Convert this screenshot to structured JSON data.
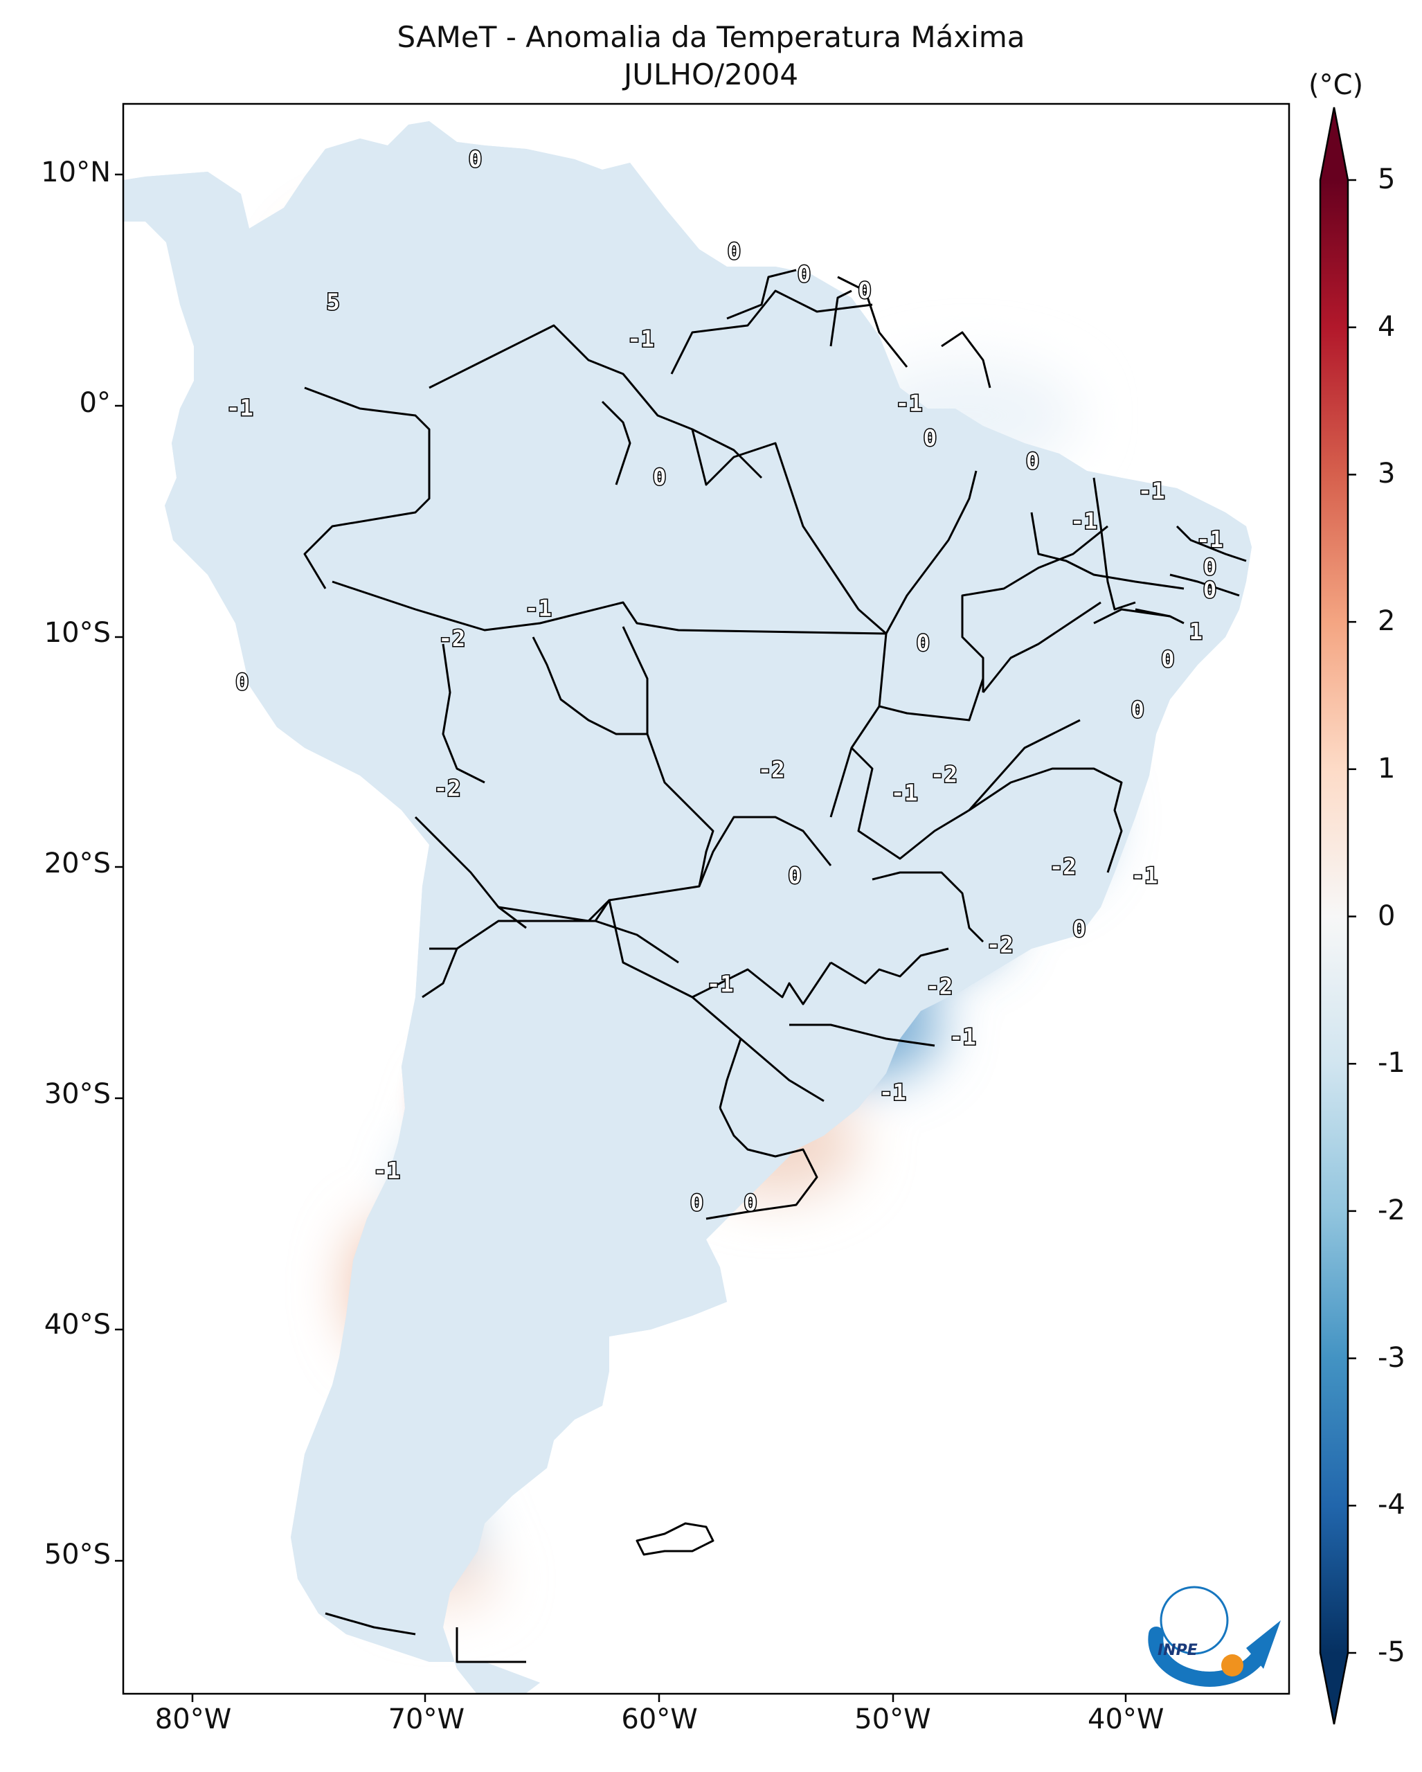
{
  "title": "SAMeT - Anomalia da Temperatura Máxima",
  "subtitle": "JULHO/2004",
  "colorbar": {
    "unit": "(°C)",
    "ticks": [
      "5",
      "4",
      "3",
      "2",
      "1",
      "0",
      "-1",
      "-2",
      "-3",
      "-4",
      "-5"
    ],
    "range": [
      -5,
      5
    ],
    "colormap": "RdBu_r",
    "extend": "both"
  },
  "axes": {
    "lat_ticks": [
      "10°N",
      "0°",
      "10°S",
      "20°S",
      "30°S",
      "40°S",
      "50°S"
    ],
    "lon_ticks": [
      "80°W",
      "70°W",
      "60°W",
      "50°W",
      "40°W"
    ],
    "lon_range": [
      -83,
      -33
    ],
    "lat_range": [
      -56,
      13
    ]
  },
  "contour_labels": [
    {
      "text": "0",
      "lon": -67.9,
      "lat": 10.6
    },
    {
      "text": "0",
      "lon": -56.8,
      "lat": 6.6
    },
    {
      "text": "0",
      "lon": -53.8,
      "lat": 5.6
    },
    {
      "text": "0",
      "lon": -51.2,
      "lat": 4.9
    },
    {
      "text": "5",
      "lon": -74.0,
      "lat": 4.4
    },
    {
      "text": "-1",
      "lon": -60.8,
      "lat": 2.8
    },
    {
      "text": "-1",
      "lon": -78.0,
      "lat": -0.2
    },
    {
      "text": "-1",
      "lon": -49.3,
      "lat": 0.0
    },
    {
      "text": "0",
      "lon": -48.4,
      "lat": -1.5
    },
    {
      "text": "0",
      "lon": -60.0,
      "lat": -3.2
    },
    {
      "text": "0",
      "lon": -44.0,
      "lat": -2.5
    },
    {
      "text": "-1",
      "lon": -38.9,
      "lat": -3.8
    },
    {
      "text": "-1",
      "lon": -41.8,
      "lat": -5.1
    },
    {
      "text": "-1",
      "lon": -36.4,
      "lat": -5.9
    },
    {
      "text": "0",
      "lon": -36.4,
      "lat": -7.1
    },
    {
      "text": "0",
      "lon": -36.4,
      "lat": -8.1
    },
    {
      "text": "-1",
      "lon": -65.2,
      "lat": -8.9
    },
    {
      "text": "-2",
      "lon": -68.9,
      "lat": -10.2
    },
    {
      "text": "1",
      "lon": -37.0,
      "lat": -9.9
    },
    {
      "text": "0",
      "lon": -48.7,
      "lat": -10.4
    },
    {
      "text": "0",
      "lon": -38.2,
      "lat": -11.1
    },
    {
      "text": "0",
      "lon": -77.9,
      "lat": -12.1
    },
    {
      "text": "0",
      "lon": -39.5,
      "lat": -13.3
    },
    {
      "text": "-2",
      "lon": -55.2,
      "lat": -15.9
    },
    {
      "text": "-2",
      "lon": -47.8,
      "lat": -16.1
    },
    {
      "text": "-1",
      "lon": -49.5,
      "lat": -16.9
    },
    {
      "text": "-2",
      "lon": -69.1,
      "lat": -16.7
    },
    {
      "text": "-2",
      "lon": -42.7,
      "lat": -20.1
    },
    {
      "text": "0",
      "lon": -54.2,
      "lat": -20.5
    },
    {
      "text": "-1",
      "lon": -39.2,
      "lat": -20.5
    },
    {
      "text": "0",
      "lon": -42.0,
      "lat": -22.8
    },
    {
      "text": "-2",
      "lon": -45.4,
      "lat": -23.5
    },
    {
      "text": "-1",
      "lon": -57.4,
      "lat": -25.2
    },
    {
      "text": "-2",
      "lon": -48.0,
      "lat": -25.3
    },
    {
      "text": "-1",
      "lon": -47.0,
      "lat": -27.5
    },
    {
      "text": "-1",
      "lon": -50.0,
      "lat": -29.9
    },
    {
      "text": "-1",
      "lon": -71.7,
      "lat": -33.3
    },
    {
      "text": "0",
      "lon": -58.4,
      "lat": -34.7
    },
    {
      "text": "0",
      "lon": -56.1,
      "lat": -34.7
    }
  ],
  "logo": {
    "label": "INPE"
  }
}
